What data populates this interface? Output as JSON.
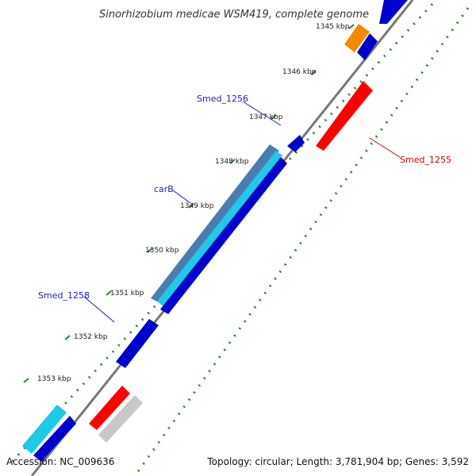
{
  "title": "Sinorhizobium medicae WSM419, complete genome",
  "ticks": [
    "1345 kbp",
    "1346 kbp",
    "1347 kbp",
    "1348 kbp",
    "1349 kbp",
    "1350 kbp",
    "1351 kbp",
    "1352 kbp",
    "1353 kbp"
  ],
  "gene_labels": [
    "Smed_1256",
    "carB",
    "Smed_1258",
    "Smed_1255"
  ],
  "footer": {
    "accession": "Accession: NC_009636",
    "stats": "Topology: circular; Length: 3,781,904 bp; Genes: 3,592"
  },
  "colors": {
    "forward_cds": "#0000cc",
    "reverse_cds": "#ff0000",
    "highlight_cds": "#1fc9e8",
    "orange_cds": "#f08a00",
    "gray_feature": "#c8c8c8",
    "backbone": "#777777",
    "gc_dots": "#1e8c1e",
    "label_blue": "#1a1acc",
    "label_red": "#cc0000"
  }
}
